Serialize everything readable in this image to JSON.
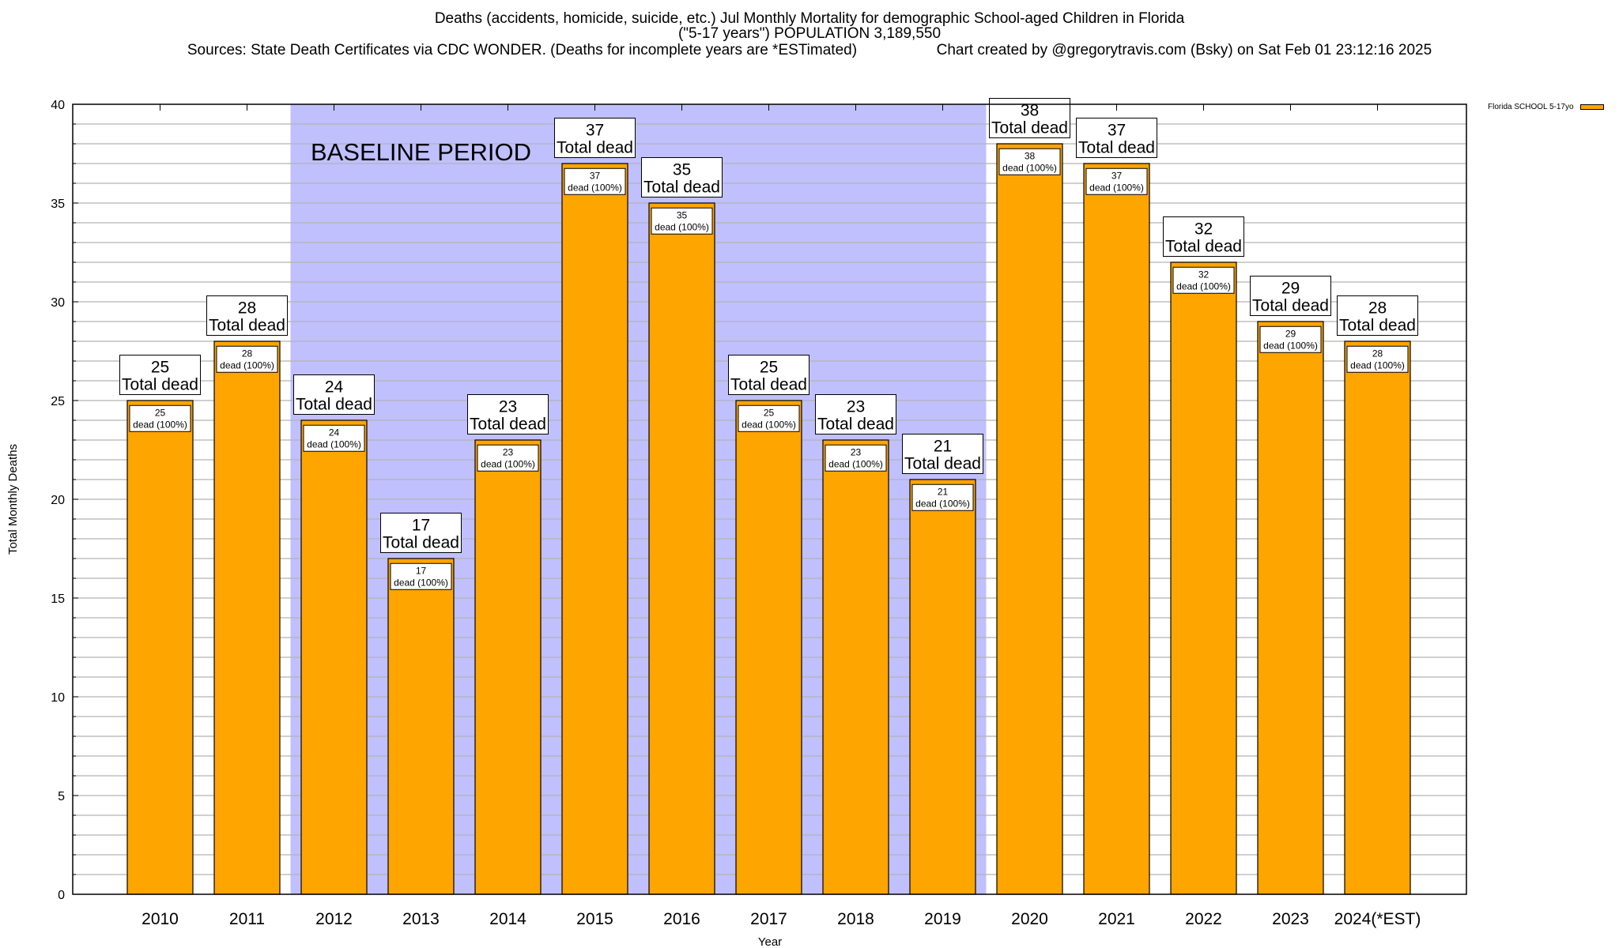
{
  "title": {
    "line1": "Deaths (accidents, homicide, suicide, etc.) Jul Monthly Mortality for demographic School-aged Children in Florida",
    "line2": "(\"5-17 years\") POPULATION 3,189,550",
    "sources": "Sources: State Death Certificates via CDC WONDER. (Deaths for incomplete years are *ESTimated)",
    "credit": "Chart created by @gregorytravis.com (Bsky) on Sat Feb 01 23:12:16 2025"
  },
  "chart_data": {
    "type": "bar",
    "xlabel": "Year",
    "ylabel": "Total Monthly Deaths",
    "ylim": [
      0,
      40
    ],
    "yticks": [
      0,
      5,
      10,
      15,
      20,
      25,
      30,
      35,
      40
    ],
    "grid": true,
    "legend_position": "top-right (outside)",
    "categories": [
      "2010",
      "2011",
      "2012",
      "2013",
      "2014",
      "2015",
      "2016",
      "2017",
      "2018",
      "2019",
      "2020",
      "2021",
      "2022",
      "2023",
      "2024(*EST)"
    ],
    "series": [
      {
        "name": "Florida SCHOOL 5-17yo",
        "color": "#ffa500",
        "values": [
          25,
          28,
          24,
          17,
          23,
          37,
          35,
          25,
          23,
          21,
          38,
          37,
          32,
          29,
          28
        ]
      }
    ],
    "top_label_suffix": "Total dead",
    "inner_label_suffix": "dead (100%)",
    "annotation": {
      "text": "BASELINE PERIOD",
      "from": "2012",
      "to": "2019",
      "color": "#c0c0ff"
    }
  }
}
